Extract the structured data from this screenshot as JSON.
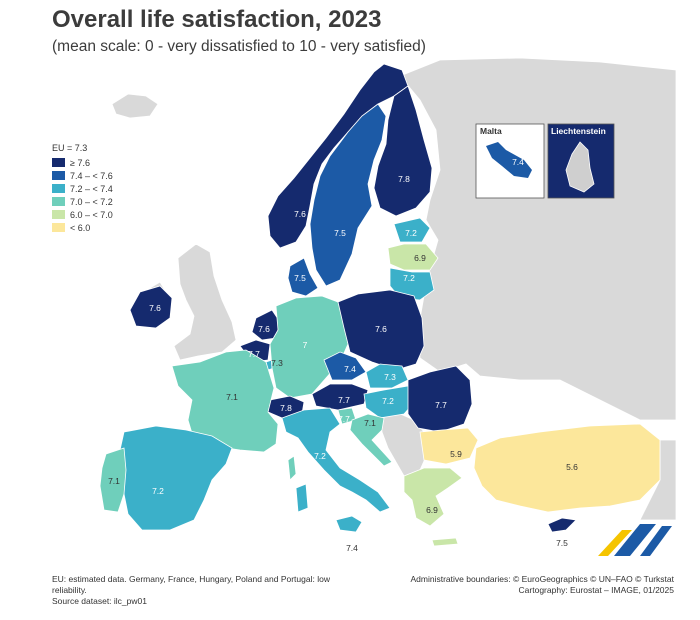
{
  "title": "Overall life satisfaction, 2023",
  "subtitle": "(mean scale: 0 - very dissatisfied to 10 - very satisfied)",
  "legend": {
    "eu_label": "EU = 7.3",
    "items": [
      {
        "label": "≥ 7.6",
        "color": "#152a6e"
      },
      {
        "label": "7.4 – < 7.6",
        "color": "#1c5aa6"
      },
      {
        "label": "7.2 – < 7.4",
        "color": "#3bb0c9"
      },
      {
        "label": "7.0 – < 7.2",
        "color": "#6fcfbb"
      },
      {
        "label": "6.0 – < 7.0",
        "color": "#c9e6a8"
      },
      {
        "label": "< 6.0",
        "color": "#fce79b"
      }
    ]
  },
  "insets": {
    "malta": {
      "title": "Malta",
      "value": "7.4"
    },
    "liechtenstein": {
      "title": "Liechtenstein"
    }
  },
  "values": {
    "finland": "7.8",
    "norway": "7.6",
    "sweden": "7.5",
    "denmark": "7.5",
    "ireland": "7.6",
    "estonia": "7.2",
    "latvia": "6.9",
    "lithuania": "7.2",
    "netherlands": "7.6",
    "belgium": "7.7",
    "luxembourg": "7.3",
    "germany": "7",
    "poland": "7.6",
    "czechia": "7.4",
    "slovakia": "7.3",
    "austria": "7.7",
    "hungary": "7.2",
    "romania": "7.7",
    "france": "7.1",
    "switzerland": "7.8",
    "slovenia": "7.7",
    "croatia": "7.1",
    "italy": "7.2",
    "spain": "7.2",
    "portugal": "7.1",
    "bulgaria": "5.9",
    "turkey": "5.6",
    "greece": "6.9",
    "cyprus": "7.5",
    "sicily_malta": "7.4"
  },
  "footer": {
    "note1": "EU: estimated data. Germany, France, Hungary, Poland and Portugal: low reliability.",
    "note2": "Source dataset: ilc_pw01",
    "credits1": "Administrative boundaries: © EuroGeographics © UN–FAO © Turkstat",
    "credits2": "Cartography: Eurostat – IMAGE, 01/2025"
  }
}
